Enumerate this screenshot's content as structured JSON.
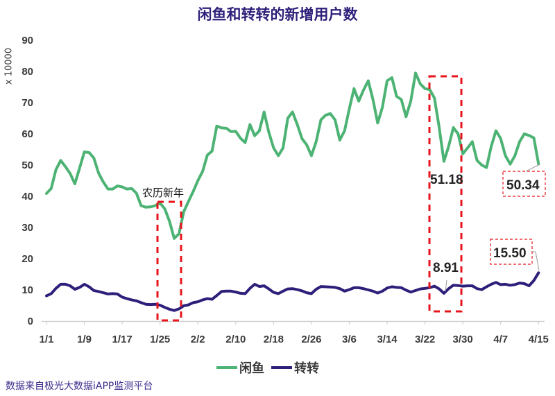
{
  "title": "闲鱼和转转的新增用户数",
  "y_unit_label": "x 10000",
  "source_note": "数据来自极光大数据iAPP监测平台",
  "legend": [
    {
      "label": "闲鱼",
      "color": "#4db374"
    },
    {
      "label": "转转",
      "color": "#2e1f7a"
    }
  ],
  "annotations": {
    "spring_festival_label": "农历新年",
    "xianyu_min_label": "51.18",
    "xianyu_last_label": "50.34",
    "zhuanzhuan_min_label": "8.91",
    "zhuanzhuan_last_label": "15.50",
    "highlight_color": "#e8141c"
  },
  "chart_data": {
    "type": "line",
    "title": "闲鱼和转转的新增用户数",
    "xlabel": "",
    "ylabel": "x 10000",
    "ylim": [
      0,
      90
    ],
    "yticks": [
      0,
      10,
      20,
      30,
      40,
      50,
      60,
      70,
      80,
      90
    ],
    "x_tick_labels": [
      "1/1",
      "1/9",
      "1/17",
      "1/25",
      "2/2",
      "2/10",
      "2/18",
      "2/26",
      "3/6",
      "3/14",
      "3/22",
      "3/30",
      "4/7",
      "4/15"
    ],
    "x_tick_interval_days": 8,
    "x_start": "1/1",
    "x_end": "4/15",
    "x_frequency": "daily",
    "grid": false,
    "legend_position": "bottom",
    "series": [
      {
        "name": "闲鱼",
        "color": "#4db374",
        "values": [
          40.9,
          42.5,
          48.5,
          51.5,
          49.5,
          47.3,
          44,
          49,
          54.2,
          54,
          52.3,
          47.5,
          44.6,
          42.3,
          42.3,
          43.3,
          43,
          42.3,
          42.5,
          41,
          37,
          36.5,
          36.6,
          37,
          37.8,
          36,
          32,
          26.5,
          28,
          35,
          38.3,
          41.5,
          45,
          48,
          53.2,
          54.5,
          62.5,
          61.9,
          61.8,
          60.7,
          60.8,
          58.6,
          57.2,
          63,
          59.4,
          61,
          67,
          60.5,
          55.5,
          53,
          55.5,
          65,
          67,
          63,
          58.5,
          56.5,
          53,
          57.5,
          64.5,
          66,
          66.5,
          64.5,
          58,
          61,
          68,
          74.5,
          70.5,
          74,
          77,
          71,
          63.5,
          68.5,
          77,
          78,
          72,
          71,
          65.5,
          70.5,
          79.5,
          76,
          74.5,
          74.2,
          71.5,
          62,
          51.18,
          56,
          62,
          60,
          53.6,
          55.5,
          57.5,
          51.5,
          50,
          49.2,
          56,
          61,
          58.5,
          53,
          50.3,
          53,
          57.5,
          60,
          59.5,
          58.7,
          50.34
        ]
      },
      {
        "name": "转转",
        "color": "#2e1f7a",
        "values": [
          8.1,
          8.8,
          10.5,
          11.8,
          11.8,
          11.3,
          10.2,
          10.8,
          11.8,
          11,
          9.8,
          9.5,
          9.1,
          8.7,
          8.8,
          8.7,
          7.7,
          7.2,
          6.8,
          6.5,
          5.9,
          5.4,
          5.3,
          5.4,
          5.1,
          4.4,
          3.8,
          3.4,
          3.9,
          4.9,
          5.2,
          5.9,
          6.2,
          6.8,
          7.2,
          7,
          8.2,
          9.5,
          9.6,
          9.6,
          9.3,
          8.9,
          8.8,
          10.5,
          11.8,
          11.1,
          11.3,
          10.3,
          9.2,
          8.8,
          9.6,
          10.3,
          10.4,
          10.1,
          9.7,
          9.1,
          8.8,
          10.2,
          11.1,
          11,
          10.9,
          10.8,
          10.4,
          9.6,
          10.1,
          10.7,
          10.7,
          10.4,
          10,
          9.6,
          9,
          9.6,
          10.6,
          11,
          10.8,
          10.7,
          9.9,
          9.3,
          9.8,
          10.3,
          10.5,
          10.7,
          11.2,
          10.3,
          8.91,
          10.4,
          11.5,
          11.4,
          11.2,
          11.3,
          11.3,
          10.4,
          10.1,
          11,
          11.8,
          12.4,
          11.7,
          11.8,
          11.5,
          11.7,
          12.2,
          12,
          11.3,
          13,
          15.5
        ]
      }
    ],
    "annotations": [
      {
        "text": "农历新年",
        "type": "highlight_box",
        "range": [
          "1/24",
          "1/29"
        ]
      },
      {
        "text": "51.18",
        "series": "闲鱼",
        "date": "3/26"
      },
      {
        "text": "50.34",
        "series": "闲鱼",
        "date": "4/15"
      },
      {
        "text": "8.91",
        "series": "转转",
        "date": "3/26"
      },
      {
        "text": "15.50",
        "series": "转转",
        "date": "4/15"
      },
      {
        "type": "highlight_box",
        "range": [
          "3/23",
          "3/30"
        ]
      }
    ]
  }
}
